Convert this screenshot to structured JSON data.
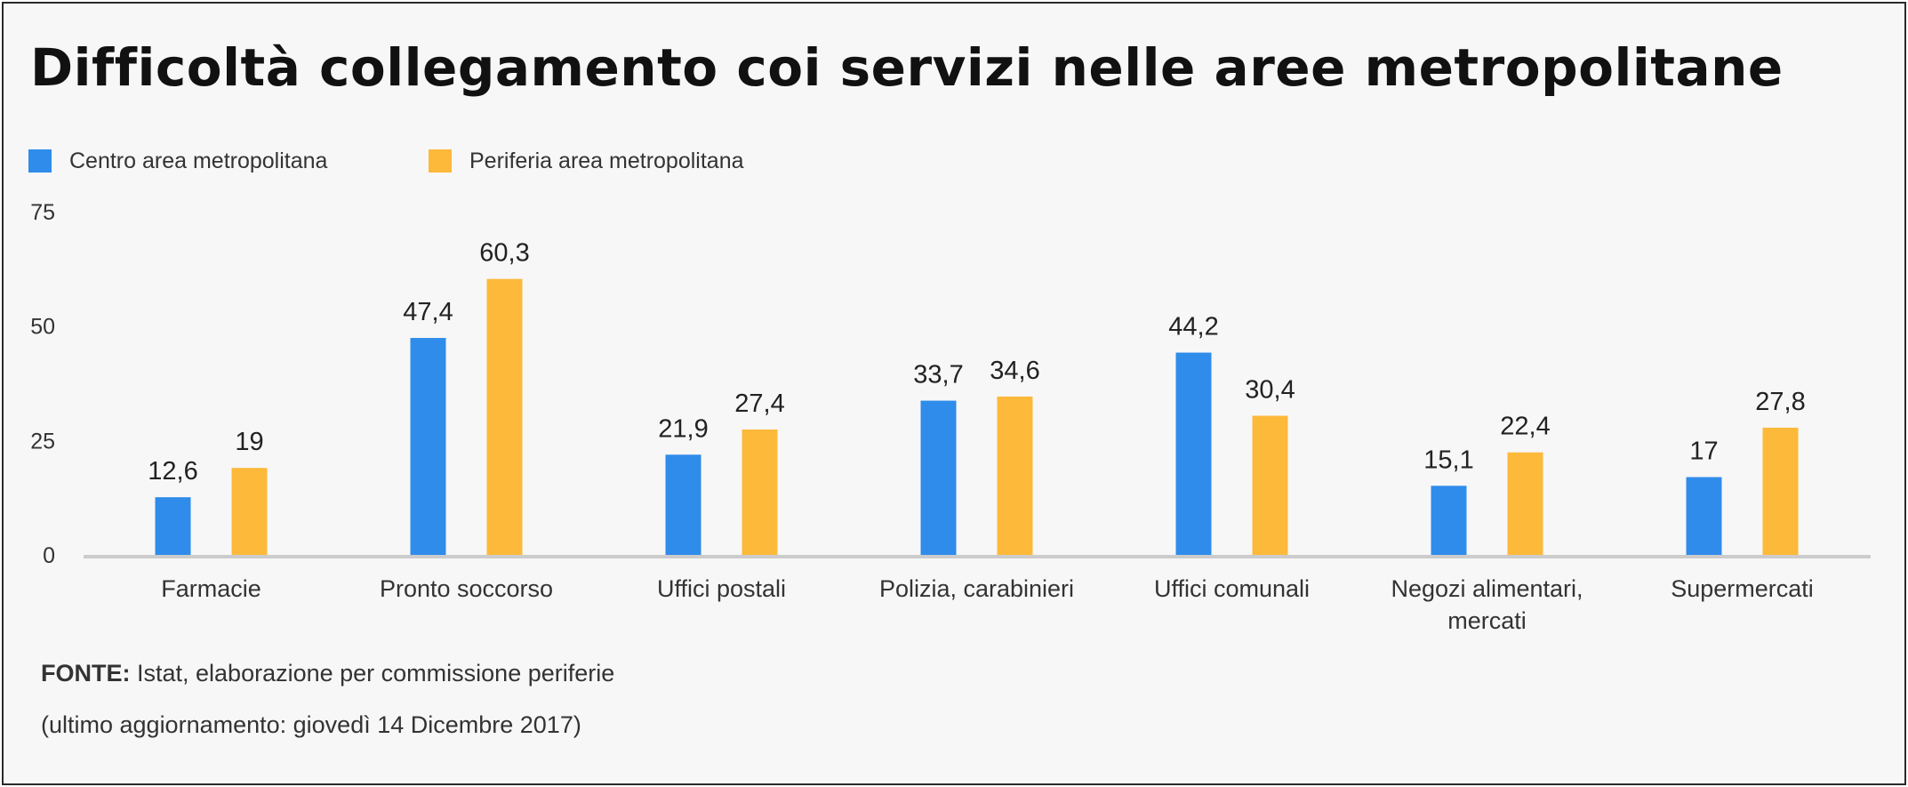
{
  "chart_data": {
    "type": "bar",
    "title": "Difficoltà collegamento coi servizi nelle aree metropolitane",
    "categories": [
      [
        "Farmacie"
      ],
      [
        "Pronto soccorso"
      ],
      [
        "Uffici postali"
      ],
      [
        "Polizia, carabinieri"
      ],
      [
        "Uffici comunali"
      ],
      [
        "Negozi alimentari,",
        "mercati"
      ],
      [
        "Supermercati"
      ]
    ],
    "series": [
      {
        "name": "Centro area metropolitana",
        "color": "#2f8ceb",
        "values": [
          12.6,
          47.4,
          21.9,
          33.7,
          44.2,
          15.1,
          17
        ],
        "labels": [
          "12,6",
          "47,4",
          "21,9",
          "33,7",
          "44,2",
          "15,1",
          "17"
        ]
      },
      {
        "name": "Periferia area metropolitana",
        "color": "#fdb93a",
        "values": [
          19,
          60.3,
          27.4,
          34.6,
          30.4,
          22.4,
          27.8
        ],
        "labels": [
          "19",
          "60,3",
          "27,4",
          "34,6",
          "30,4",
          "22,4",
          "27,8"
        ]
      }
    ],
    "yticks": [
      0,
      25,
      50,
      75
    ],
    "ylim": [
      0,
      75
    ],
    "legend_position": "top-left",
    "grid": false
  },
  "source": {
    "label": "FONTE:",
    "text": " Istat, elaborazione per commissione periferie"
  },
  "last_updated": "(ultimo aggiornamento: giovedì 14 Dicembre 2017)"
}
